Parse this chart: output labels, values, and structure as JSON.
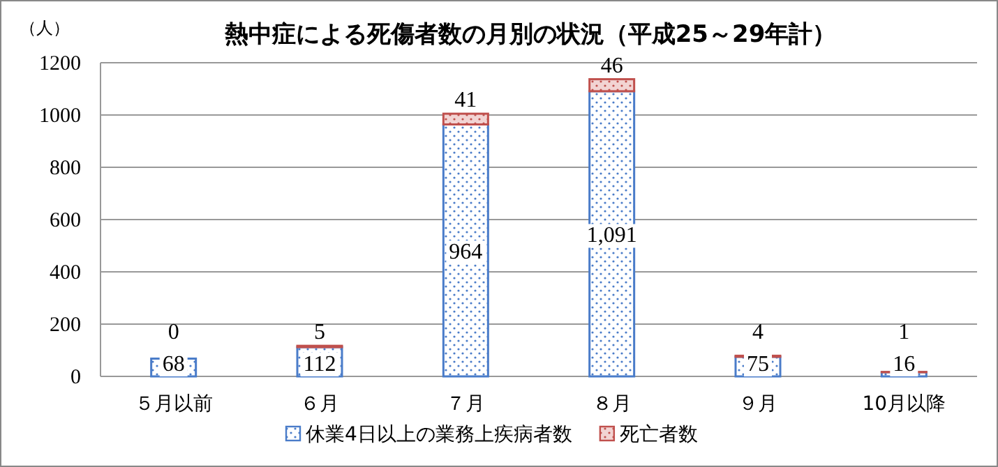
{
  "chart_data": {
    "type": "bar",
    "stacked": true,
    "title": "熱中症による死傷者数の月別の状況（平成25～29年計）",
    "ylabel": "（人）",
    "categories": [
      "５月以前",
      "６月",
      "７月",
      "８月",
      "９月",
      "10月以降"
    ],
    "series": [
      {
        "name": "休業4日以上の業務上疾病者数",
        "color": "#4a7cc9",
        "values": [
          68,
          112,
          964,
          1091,
          75,
          16
        ],
        "value_labels": [
          "68",
          "112",
          "964",
          "1,091",
          "75",
          "16"
        ]
      },
      {
        "name": "死亡者数",
        "color": "#c0504d",
        "values": [
          0,
          5,
          41,
          46,
          4,
          1
        ],
        "value_labels": [
          "0",
          "5",
          "41",
          "46",
          "4",
          "1"
        ]
      }
    ],
    "ylim": [
      0,
      1200
    ],
    "yticks": [
      0,
      200,
      400,
      600,
      800,
      1000,
      1200
    ],
    "grid": "y",
    "legend": "bottom"
  }
}
